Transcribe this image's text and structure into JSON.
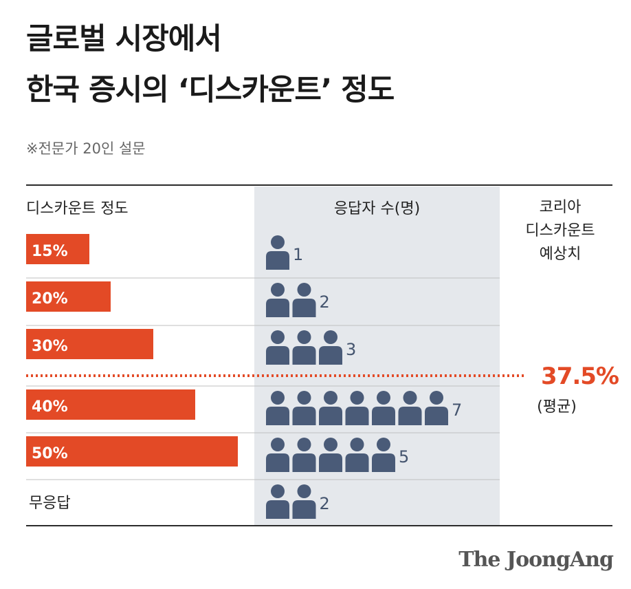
{
  "title": {
    "line1": "글로벌 시장에서",
    "line2": "한국 증시의 ‘디스카운트’ 정도"
  },
  "subtitle": "※전문가 20인 설문",
  "headers": {
    "discount": "디스카운트 정도",
    "respondents": "응답자 수(명)",
    "estimate_line1": "코리아",
    "estimate_line2": "디스카운트",
    "estimate_line3": "예상치"
  },
  "average": {
    "value": "37.5%",
    "label": "(평균)",
    "numeric": 37.5
  },
  "source": "The JoongAng",
  "colors": {
    "bar": "#e34a26",
    "person": "#4a5b78",
    "column": "#e5e8ec",
    "average": "#e34a26"
  },
  "chart_data": {
    "type": "bar",
    "title": "글로벌 시장에서 한국 증시의 ‘디스카운트’ 정도",
    "subtitle": "※전문가 20인 설문",
    "xlabel": "디스카운트 정도",
    "ylabel": "응답자 수(명)",
    "categories": [
      "15%",
      "20%",
      "30%",
      "40%",
      "50%",
      "무응답"
    ],
    "discount_values": [
      15,
      20,
      30,
      40,
      50,
      null
    ],
    "values": [
      1,
      2,
      3,
      7,
      5,
      2
    ],
    "average": 37.5,
    "average_label": "(평균)"
  }
}
